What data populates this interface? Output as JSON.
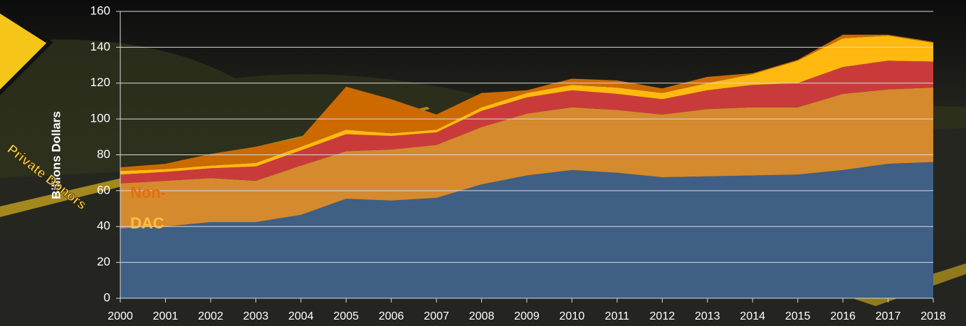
{
  "chart_data": {
    "type": "stacked-area",
    "y_label": "Billions Dollars",
    "annotations": [
      "Non-",
      "DAC",
      "Private Donors"
    ],
    "categories": [
      "2000",
      "2001",
      "2002",
      "2003",
      "2004",
      "2005",
      "2006",
      "2007",
      "2008",
      "2009",
      "2010",
      "2011",
      "2012",
      "2013",
      "2014",
      "2015",
      "2016",
      "2017",
      "2018"
    ],
    "series": [
      {
        "color": "#3f5f85",
        "values": [
          39,
          40,
          42.5,
          42.5,
          46.5,
          55.5,
          54.5,
          56,
          63.5,
          68.5,
          71.5,
          70,
          67.5,
          68,
          68.5,
          69,
          71.5,
          75,
          76
        ]
      },
      {
        "color": "#d58a2e",
        "values": [
          25,
          25.5,
          24.5,
          23,
          27.5,
          26.5,
          28.5,
          29.5,
          32,
          34.5,
          35,
          35,
          35,
          37.5,
          38,
          37.5,
          42.5,
          41.5,
          41.5
        ]
      },
      {
        "color": "#c93b3b",
        "values": [
          5,
          5,
          5.5,
          8,
          8.5,
          9.5,
          7.5,
          7,
          9,
          9,
          9.5,
          9,
          8.5,
          10.5,
          12.5,
          13.5,
          15,
          16,
          14.5
        ]
      },
      {
        "color": "#ffb910",
        "values": [
          2,
          1.5,
          1.5,
          2,
          2,
          2.5,
          1.5,
          1.5,
          2,
          2.5,
          3,
          3.5,
          3.5,
          4,
          6,
          12.5,
          16,
          14,
          10.5
        ]
      },
      {
        "color": "#cc6a00",
        "values": [
          2,
          3,
          6.5,
          9,
          5,
          24,
          19,
          8.5,
          8,
          1.5,
          3.5,
          4,
          2.5,
          3.5,
          0.5,
          0.5,
          2,
          0.5,
          0.5
        ]
      }
    ],
    "ylim": [
      0,
      160
    ],
    "yticks": [
      0,
      20,
      40,
      60,
      80,
      100,
      120,
      140,
      160
    ],
    "grid": true
  }
}
